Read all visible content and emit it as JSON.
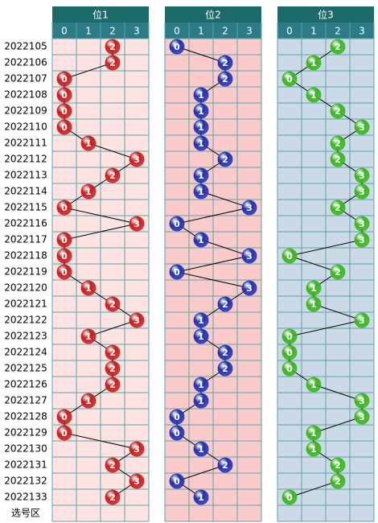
{
  "chart_data": {
    "type": "trend",
    "categories": [
      "2022105",
      "2022106",
      "2022107",
      "2022108",
      "2022109",
      "2022110",
      "2022111",
      "2022112",
      "2022113",
      "2022114",
      "2022115",
      "2022116",
      "2022117",
      "2022118",
      "2022119",
      "2022120",
      "2022121",
      "2022122",
      "2022123",
      "2022124",
      "2022125",
      "2022126",
      "2022127",
      "2022128",
      "2022129",
      "2022130",
      "2022131",
      "2022132",
      "2022133"
    ],
    "footer": "选号区",
    "xticks": [
      0,
      1,
      2,
      3
    ],
    "series": [
      {
        "name": "位1",
        "color": "#c62020",
        "background": "#fde3e1",
        "values": [
          2,
          2,
          0,
          0,
          0,
          0,
          1,
          3,
          2,
          1,
          0,
          3,
          0,
          0,
          0,
          1,
          2,
          3,
          1,
          2,
          2,
          2,
          1,
          0,
          0,
          3,
          2,
          3,
          2
        ]
      },
      {
        "name": "位2",
        "color": "#2233b0",
        "background": "#fbcaca",
        "values": [
          0,
          2,
          2,
          1,
          1,
          1,
          1,
          2,
          1,
          1,
          3,
          0,
          1,
          3,
          0,
          3,
          2,
          1,
          1,
          2,
          2,
          1,
          1,
          0,
          0,
          1,
          2,
          0,
          1
        ]
      },
      {
        "name": "位3",
        "color": "#3cb521",
        "background": "#ccd9e6",
        "values": [
          2,
          1,
          0,
          1,
          2,
          3,
          2,
          2,
          3,
          3,
          2,
          3,
          3,
          0,
          2,
          1,
          1,
          3,
          0,
          0,
          0,
          1,
          3,
          3,
          1,
          1,
          2,
          2,
          0
        ]
      }
    ]
  }
}
